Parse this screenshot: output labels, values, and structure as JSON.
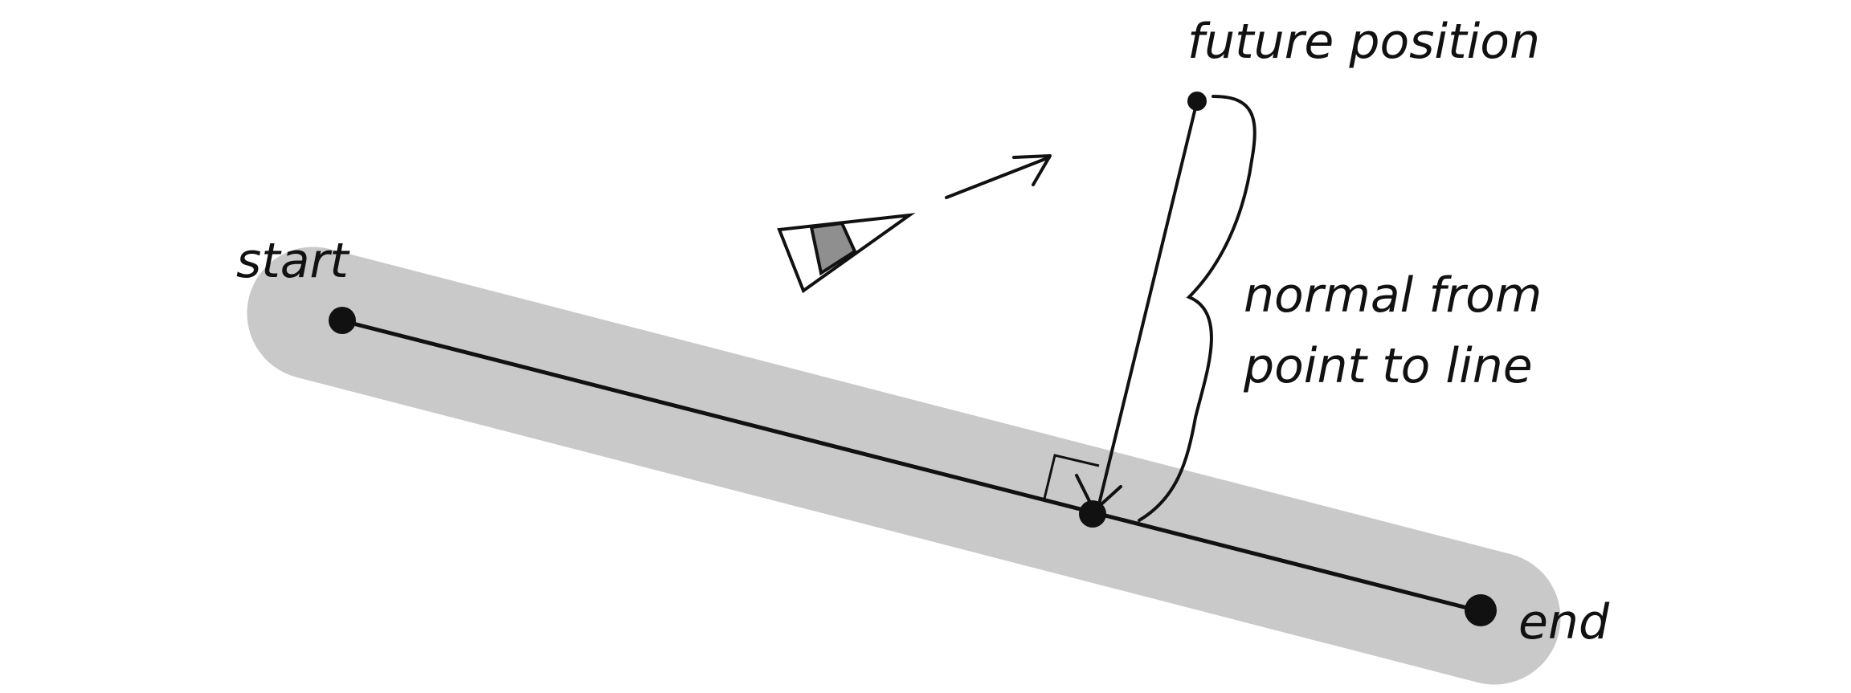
{
  "labels": {
    "start": "start",
    "end": "end",
    "future_position": "future position",
    "normal_line1": "normal from",
    "normal_line2": "point to line"
  },
  "colors": {
    "path_band": "#c9c9c9",
    "ink": "#111111",
    "vehicle_stripe": "#8f8f8f",
    "background": "#ffffff"
  },
  "icons": {
    "vehicle": "triangle-vehicle-icon",
    "velocity": "arrow-icon",
    "right_angle": "right-angle-marker",
    "brace": "curly-brace"
  }
}
